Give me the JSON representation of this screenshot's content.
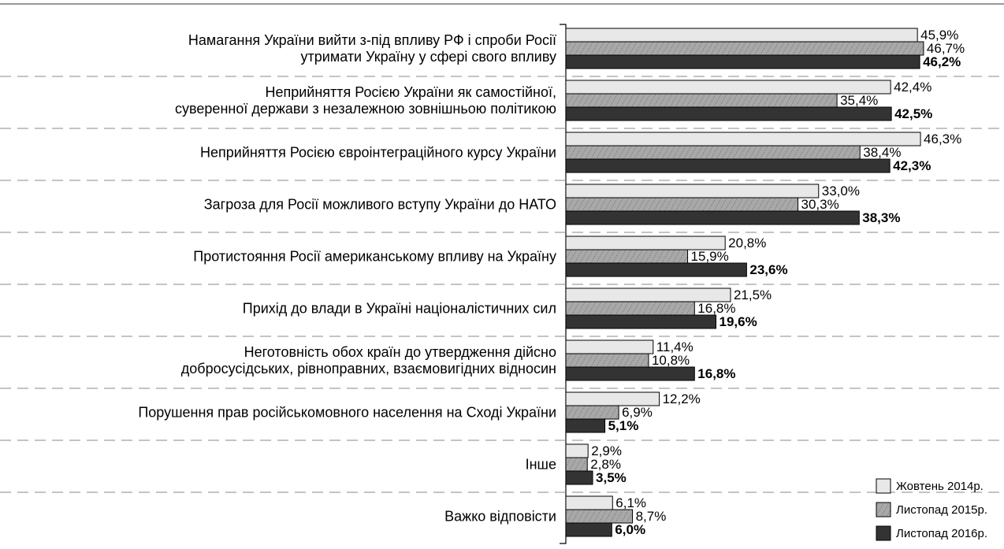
{
  "chart_data": {
    "type": "bar",
    "orientation": "horizontal",
    "categories": [
      "Намагання України вийти з-під впливу РФ і спроби Росії\nутримати Україну у сфері свого впливу",
      "Неприйняття Росією України як самостійної,\nсуверенної держави з незалежною зовнішньою політикою",
      "Неприйняття Росією євроінтеграційного курсу України",
      "Загроза для Росії можливого вступу України до НАТО",
      "Протистояння Росії американському впливу на Україну",
      "Прихід до влади в Україні націоналістичних сил",
      "Неготовність обох країн до утвердження дійсно\nдобросусідських, рівноправних, взаємовигідних відносин",
      "Порушення прав російськомовного населення на Сході України",
      "Інше",
      "Важко відповісти"
    ],
    "series": [
      {
        "name": "Жовтень 2014р.",
        "color": "#e8e8e8",
        "bold": false,
        "values": [
          45.9,
          42.4,
          46.3,
          33.0,
          20.8,
          21.5,
          11.4,
          12.2,
          2.9,
          6.1
        ],
        "value_labels": [
          "45,9%",
          "42,4%",
          "46,3%",
          "33,0%",
          "20,8%",
          "21,5%",
          "11,4%",
          "12,2%",
          "2,9%",
          "6,1%"
        ]
      },
      {
        "name": "Листопад 2015р.",
        "color": "#a8a8a8",
        "hatch": true,
        "bold": false,
        "values": [
          46.7,
          35.4,
          38.4,
          30.3,
          15.9,
          16.8,
          10.8,
          6.9,
          2.8,
          8.7
        ],
        "value_labels": [
          "46,7%",
          "35,4%",
          "38,4%",
          "30,3%",
          "15,9%",
          "16,8%",
          "10,8%",
          "6,9%",
          "2,8%",
          "8,7%"
        ]
      },
      {
        "name": "Листопад 2016р.",
        "color": "#333333",
        "bold": true,
        "values": [
          46.2,
          42.5,
          42.3,
          38.3,
          23.6,
          19.6,
          16.8,
          5.1,
          3.5,
          6.0
        ],
        "value_labels": [
          "46,2%",
          "42,5%",
          "42,3%",
          "38,3%",
          "23,6%",
          "19,6%",
          "16,8%",
          "5,1%",
          "3,5%",
          "6,0%"
        ]
      }
    ],
    "xlim": [
      0,
      50
    ],
    "legend": "lower right"
  }
}
